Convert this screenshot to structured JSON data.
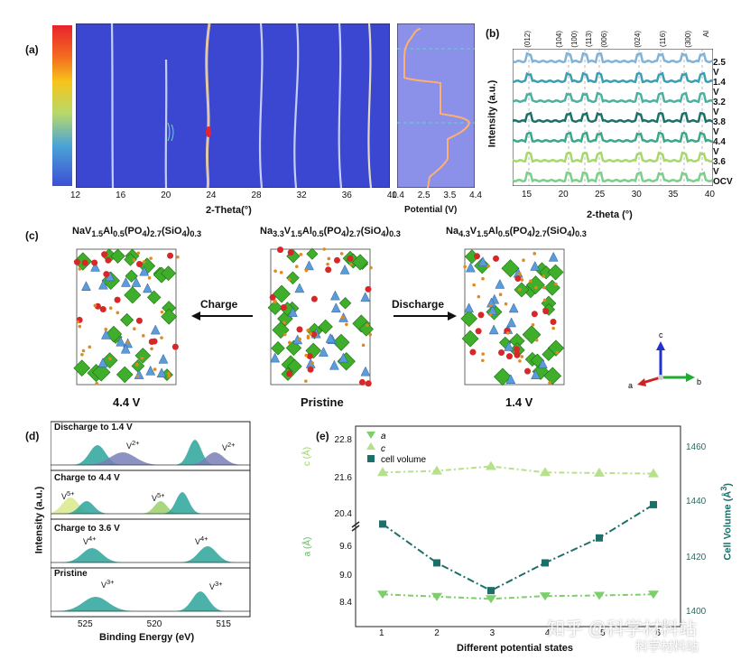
{
  "panel_a": {
    "label": "(a)",
    "x_ticks": [
      "12",
      "16",
      "20",
      "24",
      "28",
      "32",
      "36",
      "40"
    ],
    "x_label": "2-Theta(°)",
    "potential_ticks": [
      "1.4",
      "2.5",
      "3.5",
      "4.4"
    ],
    "potential_label": "Potential (V)",
    "colorbar": [
      "#d7263d",
      "#f25c05",
      "#f6c90e",
      "#7fd36b",
      "#3aa0c9",
      "#3b4fd6"
    ]
  },
  "panel_b": {
    "label": "(b)",
    "y_label": "Intensity (a.u.)",
    "x_label": "2-theta (°)",
    "x_ticks": [
      "15",
      "20",
      "25",
      "30",
      "35",
      "40"
    ],
    "hkl": [
      "(012)",
      "(104)",
      "(100)",
      "(113)",
      "(006)",
      "(024)",
      "(116)",
      "(300)",
      "Al"
    ],
    "curve_labels": [
      "2.5 V",
      "1.4 V",
      "3.2 V",
      "3.8 V",
      "4.4 V",
      "3.6 V",
      "OCV"
    ],
    "curve_colors": [
      "#7fb3d8",
      "#3a9fb0",
      "#4cb0a0",
      "#1d6f6a",
      "#3aa68b",
      "#a6d96a",
      "#7ccf8a"
    ]
  },
  "panel_c": {
    "label": "(c)",
    "left_formula": "NaV",
    "left_formula_parts": {
      "a": "NaV",
      "s1": "1.5",
      "b": "Al",
      "s2": "0.5",
      "c": "(PO",
      "s3": "4",
      "d": ")",
      "s4": "2.7",
      "e": "(SiO",
      "s5": "4",
      "f": ")",
      "s6": "0.3"
    },
    "mid_formula_parts": {
      "a": "Na",
      "s0": "3.3",
      "b": "V",
      "s1": "1.5",
      "c": "Al",
      "s2": "0.5",
      "d": "(PO",
      "s3": "4",
      "e": ")",
      "s4": "2.7",
      "f": "(SiO",
      "s5": "4",
      "g": ")",
      "s6": "0.3"
    },
    "right_formula_parts": {
      "a": "Na",
      "s0": "4.3",
      "b": "V",
      "s1": "1.5",
      "c": "Al",
      "s2": "0.5",
      "d": "(PO",
      "s3": "4",
      "e": ")",
      "s4": "2.7",
      "f": "(SiO",
      "s5": "4",
      "g": ")",
      "s6": "0.3"
    },
    "charge_label": "Charge",
    "discharge_label": "Discharge",
    "left_state": "4.4 V",
    "mid_state": "Pristine",
    "right_state": "1.4 V",
    "axes": {
      "a": "a",
      "b": "b",
      "c": "c"
    }
  },
  "panel_d": {
    "label": "(d)",
    "y_label": "Intensity (a.u.)",
    "x_label": "Binding Energy (eV)",
    "x_ticks": [
      "525",
      "520",
      "515"
    ],
    "rows": [
      {
        "title": "Discharge to 1.4 V",
        "peak1": "V",
        "sup1": "2+",
        "peak2": "V",
        "sup2": "2+"
      },
      {
        "title": "Charge to 4.4 V",
        "peak1": "V",
        "sup1": "5+",
        "peak2": "V",
        "sup2": "5+"
      },
      {
        "title": "Charge to 3.6 V",
        "peak1": "V",
        "sup1": "4+",
        "peak2": "V",
        "sup2": "4+"
      },
      {
        "title": "Pristine",
        "peak1": "V",
        "sup1": "3+",
        "peak2": "V",
        "sup2": "3+"
      }
    ]
  },
  "panel_e": {
    "label": "(e)",
    "legend": [
      "a",
      "c",
      "cell volume"
    ],
    "x_label": "Different potential states",
    "y_left_c_label": "c (Å)",
    "y_left_a_label": "a (Å)",
    "y_right_label": "Cell Volume (Å",
    "y_right_sup": "3",
    "y_right_close": ")",
    "left_ticks_c": [
      "22.8",
      "21.6",
      "20.4"
    ],
    "left_ticks_a": [
      "9.6",
      "9.0",
      "8.4"
    ],
    "right_ticks": [
      "1460",
      "1440",
      "1420",
      "1400"
    ],
    "x_ticks": [
      "1",
      "2",
      "3",
      "4",
      "5",
      "6"
    ],
    "colors": {
      "a": "#7ccf6a",
      "c": "#b6e08a",
      "volume": "#1d6f6a"
    }
  },
  "watermark": {
    "text1": "知乎 @科学材料站",
    "text2": "科学材料站"
  },
  "chart_data": [
    {
      "type": "line",
      "title": "",
      "xlabel": "Different potential states",
      "ylabel": "c (Å)",
      "x": [
        1,
        2,
        3,
        4,
        5,
        6
      ],
      "series": [
        {
          "name": "c",
          "values": [
            21.8,
            21.85,
            22.0,
            21.8,
            21.78,
            21.76
          ]
        }
      ],
      "ylim": [
        20.0,
        23.2
      ]
    },
    {
      "type": "line",
      "xlabel": "Different potential states",
      "ylabel": "a (Å)",
      "x": [
        1,
        2,
        3,
        4,
        5,
        6
      ],
      "series": [
        {
          "name": "a",
          "values": [
            8.72,
            8.68,
            8.64,
            8.69,
            8.7,
            8.72
          ]
        }
      ],
      "ylim": [
        8.2,
        9.9
      ]
    },
    {
      "type": "line",
      "xlabel": "Different potential states",
      "ylabel": "Cell Volume (Å3)",
      "x": [
        1,
        2,
        3,
        4,
        5,
        6
      ],
      "series": [
        {
          "name": "cell volume",
          "values": [
            1436,
            1422,
            1412,
            1422,
            1431,
            1443
          ]
        }
      ],
      "ylim": [
        1400,
        1470
      ]
    }
  ]
}
